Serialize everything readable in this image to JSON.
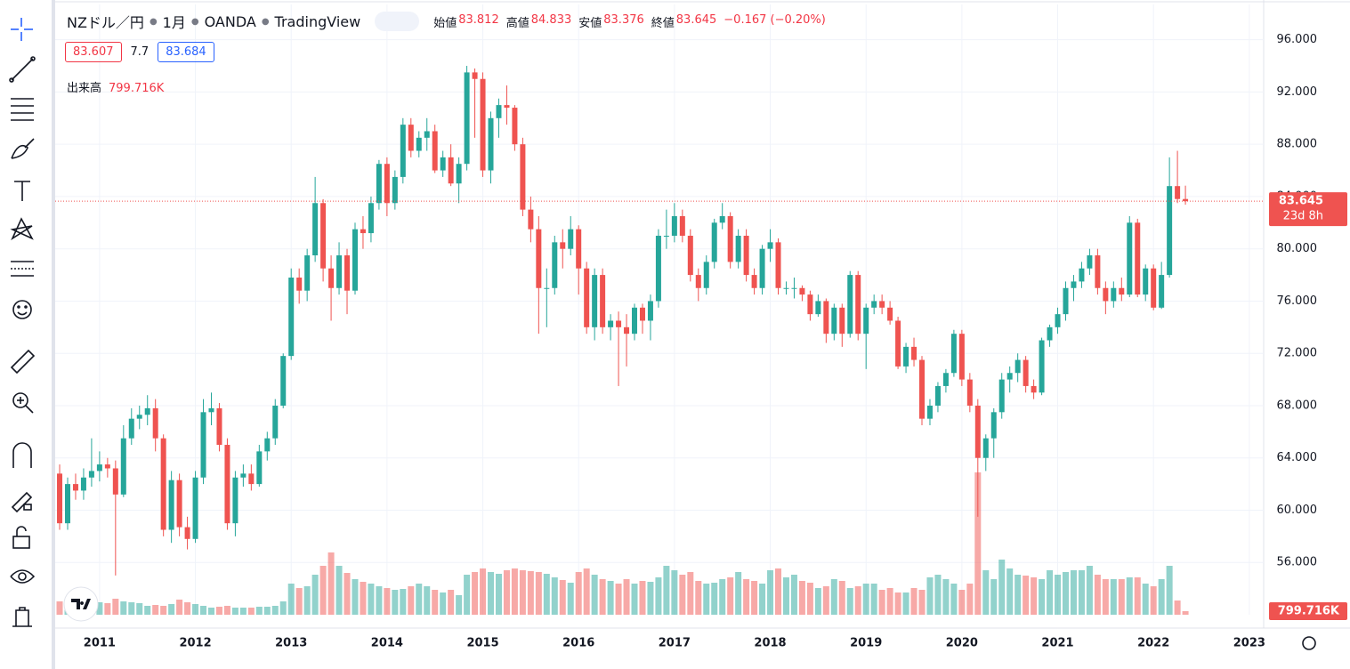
{
  "chart_data": {
    "type": "candlestick",
    "symbol": "NZドル／円",
    "interval": "1月",
    "broker": "OANDA",
    "platform": "TradingView",
    "legend": {
      "open_label": "始値",
      "open": "83.812",
      "high_label": "高値",
      "high": "84.833",
      "low_label": "安値",
      "low": "83.376",
      "close_label": "終値",
      "close": "83.645",
      "change": "−0.167 (−0.20%)"
    },
    "bid": "83.607",
    "spread": "7.7",
    "ask": "83.684",
    "volume_label": "出来高",
    "volume_value": "799.716K",
    "last_price_label": "83.645",
    "countdown": "23d 8h",
    "last_volume_label": "799.716K",
    "up_color": "#26a69a",
    "down_color": "#ef5350",
    "ylim": [
      52,
      98.7
    ],
    "xlim": [
      -0.56,
      150.8
    ],
    "yticks": [
      {
        "value": 56,
        "label": "56.000"
      },
      {
        "value": 60,
        "label": "60.000"
      },
      {
        "value": 64,
        "label": "64.000"
      },
      {
        "value": 68,
        "label": "68.000"
      },
      {
        "value": 72,
        "label": "72.000"
      },
      {
        "value": 76,
        "label": "76.000"
      },
      {
        "value": 80,
        "label": "80.000"
      },
      {
        "value": 84,
        "label": "84.000"
      },
      {
        "value": 88,
        "label": "88.000"
      },
      {
        "value": 92,
        "label": "92.000"
      },
      {
        "value": 96,
        "label": "96.000"
      }
    ],
    "xticks": [
      {
        "value": 5,
        "label": "2011"
      },
      {
        "value": 17,
        "label": "2012"
      },
      {
        "value": 29,
        "label": "2013"
      },
      {
        "value": 41,
        "label": "2014"
      },
      {
        "value": 53,
        "label": "2015"
      },
      {
        "value": 65,
        "label": "2016"
      },
      {
        "value": 77,
        "label": "2017"
      },
      {
        "value": 89,
        "label": "2018"
      },
      {
        "value": 101,
        "label": "2019"
      },
      {
        "value": 113,
        "label": "2020"
      },
      {
        "value": 125,
        "label": "2021"
      },
      {
        "value": 137,
        "label": "2022"
      },
      {
        "value": 149,
        "label": "2023"
      }
    ],
    "open": [
      62.8,
      59.0,
      62.0,
      61.5,
      62.5,
      63.0,
      63.5,
      63.2,
      61.2,
      65.5,
      67.0,
      67.3,
      67.8,
      65.5,
      58.5,
      62.3,
      58.7,
      57.8,
      62.5,
      67.5,
      67.8,
      65.0,
      59.0,
      62.5,
      62.8,
      62.0,
      64.5,
      65.5,
      68.0,
      71.8,
      77.8,
      76.8,
      79.5,
      83.5,
      78.5,
      77.0,
      79.5,
      76.8,
      81.5,
      81.2,
      83.5,
      86.5,
      83.5,
      85.5,
      89.5,
      87.5,
      88.5,
      89.0,
      86.0,
      87.0,
      85.0,
      86.5,
      93.5,
      93.0,
      86.0,
      90.0,
      91.0,
      90.8,
      88.0,
      83.0,
      81.5,
      77.0,
      77.0,
      80.5,
      80.0,
      81.5,
      78.5,
      74.0,
      78.0,
      74.0,
      74.5,
      74.0,
      73.5,
      75.5,
      74.5,
      76.0,
      81.0,
      81.0,
      82.5,
      81.0,
      78.0,
      77.0,
      79.0,
      82.0,
      82.5,
      79.0,
      81.0,
      78.0,
      77.0,
      80.0,
      80.5,
      77.0,
      77.0,
      77.0,
      76.5,
      75.0,
      76.0,
      73.5,
      75.5,
      73.5,
      78.0,
      73.5,
      75.5,
      76.0,
      75.5,
      74.5,
      71.0,
      72.5,
      71.5,
      67.0,
      68.0,
      69.5,
      70.5,
      73.5,
      70.0,
      68.0,
      64.0,
      65.5,
      67.5,
      70.0,
      70.5,
      71.5,
      69.5,
      69.0,
      73.0,
      74.0,
      75.0,
      77.0,
      77.5,
      78.5,
      79.5,
      77.0,
      76.0,
      77.0,
      76.5,
      82.0,
      76.5,
      78.5,
      75.5,
      78.0,
      84.8,
      83.812
    ],
    "high": [
      63.5,
      62.5,
      62.8,
      63.2,
      65.5,
      64.5,
      64.0,
      63.8,
      66.5,
      67.8,
      68.0,
      68.8,
      68.5,
      65.8,
      63.0,
      62.8,
      59.5,
      63.0,
      68.5,
      69.0,
      68.2,
      65.5,
      63.0,
      63.5,
      63.5,
      65.0,
      66.0,
      68.5,
      72.0,
      78.5,
      78.5,
      80.0,
      85.5,
      83.8,
      79.5,
      80.5,
      80.0,
      82.0,
      82.5,
      84.0,
      86.8,
      87.0,
      86.0,
      90.0,
      90.0,
      89.0,
      90.0,
      89.5,
      87.5,
      88.0,
      87.0,
      94.0,
      93.8,
      93.5,
      90.5,
      91.5,
      92.5,
      91.0,
      88.5,
      84.0,
      82.5,
      78.5,
      81.0,
      81.5,
      82.5,
      81.8,
      79.0,
      78.5,
      78.5,
      75.0,
      75.2,
      75.0,
      75.8,
      75.8,
      76.5,
      81.5,
      83.0,
      83.5,
      83.0,
      81.5,
      78.5,
      79.5,
      82.3,
      83.5,
      82.8,
      81.5,
      81.5,
      78.5,
      80.3,
      81.5,
      80.8,
      77.5,
      77.8,
      77.2,
      76.8,
      76.5,
      76.2,
      75.8,
      75.8,
      78.3,
      78.3,
      75.8,
      76.5,
      76.5,
      76.0,
      74.8,
      72.8,
      73.2,
      71.8,
      68.5,
      69.8,
      70.8,
      73.8,
      73.8,
      70.5,
      68.5,
      65.8,
      67.8,
      70.5,
      71.0,
      72.0,
      71.8,
      70.0,
      73.2,
      74.2,
      75.5,
      77.5,
      78.0,
      79.0,
      80.0,
      80.0,
      77.5,
      77.5,
      77.8,
      82.5,
      82.3,
      78.8,
      78.8,
      79.0,
      87.0,
      87.5,
      84.833
    ],
    "low": [
      58.5,
      58.5,
      60.8,
      60.8,
      61.8,
      62.2,
      62.5,
      55.0,
      61.0,
      65.0,
      66.2,
      66.5,
      64.5,
      58.0,
      57.5,
      58.0,
      57.0,
      57.5,
      62.0,
      66.5,
      64.5,
      58.5,
      58.0,
      61.8,
      61.5,
      61.8,
      63.8,
      65.0,
      67.8,
      71.5,
      75.8,
      76.0,
      79.0,
      77.5,
      74.5,
      76.5,
      75.0,
      76.5,
      80.0,
      80.5,
      83.0,
      82.5,
      83.0,
      85.0,
      87.0,
      87.0,
      87.5,
      85.8,
      85.5,
      84.8,
      83.5,
      86.0,
      88.5,
      85.5,
      85.0,
      88.5,
      89.5,
      87.5,
      82.5,
      80.5,
      73.5,
      74.0,
      76.5,
      78.5,
      79.5,
      76.5,
      73.5,
      73.0,
      73.5,
      73.0,
      69.5,
      71.0,
      73.0,
      73.5,
      73.0,
      75.5,
      80.0,
      80.5,
      80.5,
      77.5,
      76.0,
      76.5,
      78.5,
      81.5,
      78.5,
      78.5,
      77.5,
      76.5,
      76.5,
      79.0,
      76.5,
      76.5,
      76.2,
      76.0,
      74.5,
      74.8,
      72.8,
      73.0,
      72.5,
      73.2,
      73.0,
      70.8,
      75.0,
      75.0,
      74.2,
      70.8,
      70.5,
      71.0,
      66.5,
      66.5,
      67.5,
      69.0,
      70.2,
      69.5,
      67.5,
      59.5,
      63.0,
      64.0,
      67.0,
      69.0,
      69.8,
      69.0,
      68.5,
      68.8,
      72.5,
      73.5,
      74.5,
      76.0,
      77.0,
      78.0,
      76.5,
      75.0,
      75.5,
      76.0,
      76.3,
      76.3,
      76.0,
      75.3,
      75.4,
      77.8,
      83.5,
      83.376
    ],
    "close": [
      59.0,
      62.0,
      61.5,
      62.5,
      63.0,
      63.5,
      63.2,
      61.2,
      65.5,
      67.0,
      67.3,
      67.8,
      65.5,
      58.5,
      62.3,
      58.7,
      57.8,
      62.5,
      67.5,
      67.8,
      65.0,
      59.0,
      62.5,
      62.8,
      62.0,
      64.5,
      65.5,
      68.0,
      71.8,
      77.8,
      76.8,
      79.5,
      83.5,
      78.5,
      77.0,
      79.5,
      76.8,
      81.5,
      81.2,
      83.5,
      86.5,
      83.5,
      85.5,
      89.5,
      87.5,
      88.5,
      89.0,
      86.0,
      87.0,
      85.0,
      86.5,
      93.5,
      93.0,
      86.0,
      90.0,
      91.0,
      90.8,
      88.0,
      83.0,
      81.5,
      77.0,
      77.0,
      80.5,
      80.0,
      81.5,
      78.5,
      74.0,
      78.0,
      74.0,
      74.5,
      74.0,
      73.5,
      75.5,
      74.5,
      76.0,
      81.0,
      81.0,
      82.5,
      81.0,
      78.0,
      77.0,
      79.0,
      82.0,
      82.5,
      79.0,
      81.0,
      78.0,
      77.0,
      80.0,
      80.5,
      77.0,
      77.0,
      77.0,
      76.5,
      75.0,
      76.0,
      73.5,
      75.5,
      73.5,
      78.0,
      73.5,
      75.5,
      76.0,
      75.5,
      74.5,
      71.0,
      72.5,
      71.5,
      67.0,
      68.0,
      69.5,
      70.5,
      73.5,
      70.0,
      68.0,
      64.0,
      65.5,
      67.5,
      70.0,
      70.5,
      71.5,
      69.5,
      69.0,
      73.0,
      74.0,
      75.0,
      77.0,
      77.5,
      78.5,
      79.5,
      77.0,
      76.0,
      77.0,
      76.5,
      82.0,
      76.5,
      78.5,
      75.5,
      78.0,
      84.8,
      83.812,
      83.645
    ],
    "volume": [
      3000000,
      2400000,
      2000000,
      2200000,
      2600000,
      2800000,
      2600000,
      3600000,
      3000000,
      2800000,
      2600000,
      2000000,
      2200000,
      2000000,
      2400000,
      3400000,
      2800000,
      2400000,
      2000000,
      1600000,
      1800000,
      2000000,
      1600000,
      1600000,
      1600000,
      1800000,
      1800000,
      2000000,
      3000000,
      7000000,
      6000000,
      6400000,
      9000000,
      11000000,
      14000000,
      11000000,
      9400000,
      8000000,
      7400000,
      7000000,
      6400000,
      6000000,
      5600000,
      5800000,
      6400000,
      7000000,
      6400000,
      5600000,
      5000000,
      5600000,
      4400000,
      9000000,
      9600000,
      10400000,
      9600000,
      9200000,
      10000000,
      10400000,
      10000000,
      9800000,
      9600000,
      9200000,
      8400000,
      7800000,
      7200000,
      9600000,
      10400000,
      9000000,
      8000000,
      7600000,
      7000000,
      8000000,
      7000000,
      7600000,
      7400000,
      8400000,
      11000000,
      10000000,
      9000000,
      9600000,
      7600000,
      7000000,
      7200000,
      8000000,
      8400000,
      9600000,
      8000000,
      7600000,
      7000000,
      10000000,
      10400000,
      8400000,
      9000000,
      7600000,
      7200000,
      6000000,
      6400000,
      8000000,
      7600000,
      6000000,
      6400000,
      7000000,
      7000000,
      5600000,
      6000000,
      5000000,
      5000000,
      6000000,
      5600000,
      8400000,
      9000000,
      8000000,
      7000000,
      5600000,
      7000000,
      32000000,
      10000000,
      8000000,
      12400000,
      10400000,
      9000000,
      8800000,
      8400000,
      8000000,
      10000000,
      9000000,
      9600000,
      10000000,
      10000000,
      11000000,
      9000000,
      8000000,
      8000000,
      8000000,
      8400000,
      8400000,
      7000000,
      6400000,
      8000000,
      11000000,
      3200000,
      799716
    ]
  }
}
